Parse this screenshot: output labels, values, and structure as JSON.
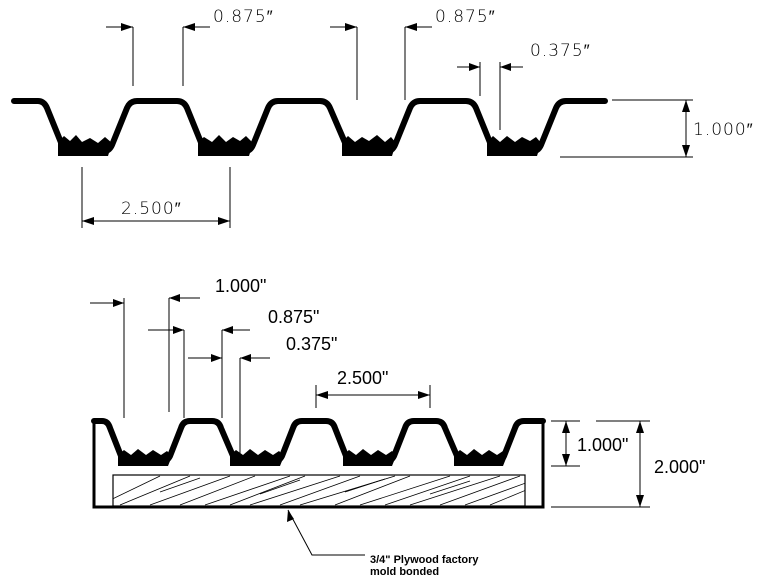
{
  "top_drawing": {
    "dim_1": "0.875″",
    "dim_2": "0.875″",
    "dim_3": "0.375″",
    "dim_height": "1.000″",
    "dim_pitch": "2.500″"
  },
  "bottom_drawing": {
    "dim_1": "1.000\"",
    "dim_2": "0.875\"",
    "dim_3": "0.375\"",
    "dim_pitch": "2.500\"",
    "dim_height_inner": "1.000\"",
    "dim_height_total": "2.000\"",
    "note_line1": "3/4\" Plywood factory",
    "note_line2": "mold bonded"
  }
}
